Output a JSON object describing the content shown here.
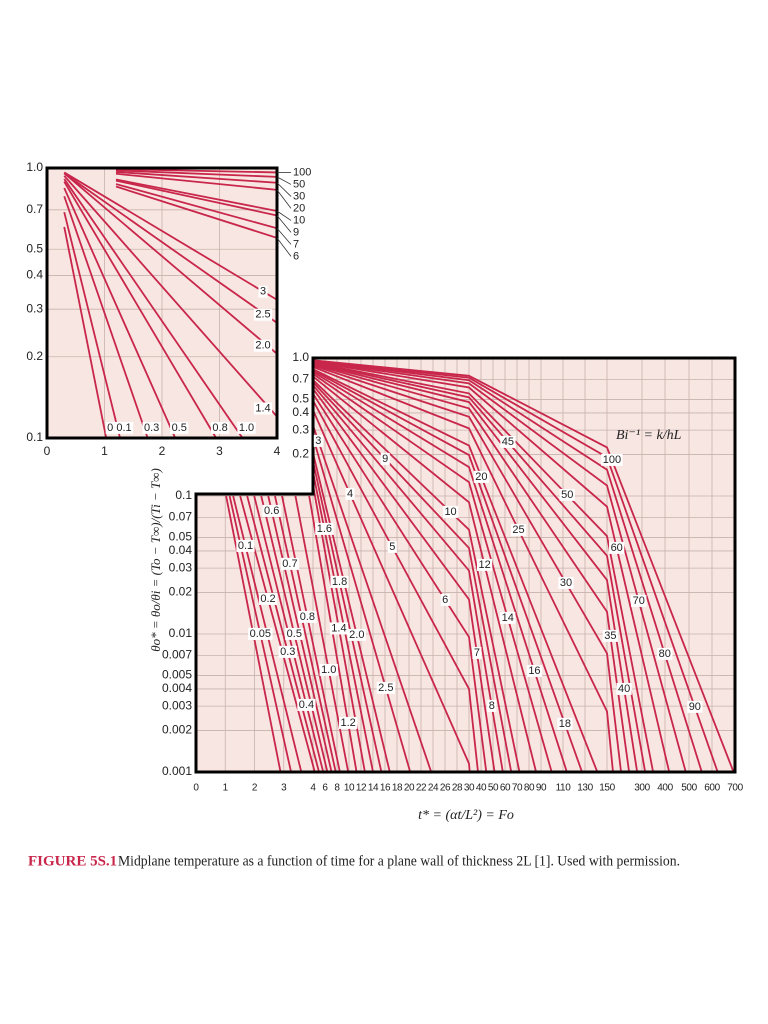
{
  "chart_data": [
    {
      "type": "line",
      "log_y": true,
      "grid": true,
      "color": "#c8264a",
      "background": "#f8e6e2",
      "xlim": [
        0,
        4
      ],
      "xticks": [
        0,
        1,
        2,
        3,
        4
      ],
      "ylim": [
        0.1,
        1
      ],
      "yticks": [
        {
          "value": 1,
          "label": "1.0"
        },
        0.7,
        0.5,
        0.4,
        0.3,
        0.2,
        0.1
      ],
      "series": [
        {
          "name": "0",
          "x": [
            0.3,
            1.03
          ],
          "values": [
            0.605,
            0.1
          ]
        },
        {
          "name": "0.1",
          "x": [
            0.3,
            1.27
          ],
          "values": [
            0.686,
            0.1
          ]
        },
        {
          "name": "0.3",
          "x": [
            0.3,
            1.75
          ],
          "values": [
            0.786,
            0.1
          ]
        },
        {
          "name": "0.5",
          "x": [
            0.3,
            2.23
          ],
          "values": [
            0.843,
            0.1
          ]
        },
        {
          "name": "0.8",
          "x": [
            0.3,
            2.94
          ],
          "values": [
            0.89,
            0.1
          ]
        },
        {
          "name": "1.0",
          "x": [
            0.3,
            3.4
          ],
          "values": [
            0.91,
            0.1
          ]
        },
        {
          "name": "1.4",
          "x": [
            0.3,
            4
          ],
          "values": [
            0.935,
            0.12
          ]
        },
        {
          "name": "2.0",
          "x": [
            0.3,
            4
          ],
          "values": [
            0.956,
            0.205
          ]
        },
        {
          "name": "2.5",
          "x": [
            0.3,
            4
          ],
          "values": [
            0.955,
            0.267
          ]
        },
        {
          "name": "3",
          "x": [
            0.3,
            4
          ],
          "values": [
            0.963,
            0.325
          ]
        },
        {
          "name": "6",
          "x": [
            1.2,
            4
          ],
          "values": [
            0.854,
            0.551
          ]
        },
        {
          "name": "7",
          "x": [
            1.2,
            4
          ],
          "values": [
            0.872,
            0.598
          ]
        },
        {
          "name": "9",
          "x": [
            1.2,
            4
          ],
          "values": [
            0.898,
            0.667
          ]
        },
        {
          "name": "10",
          "x": [
            1.2,
            4
          ],
          "values": [
            0.907,
            0.693
          ]
        },
        {
          "name": "20",
          "x": [
            1.2,
            4
          ],
          "values": [
            0.952,
            0.83
          ]
        },
        {
          "name": "30",
          "x": [
            1.2,
            4
          ],
          "values": [
            0.967,
            0.882
          ]
        },
        {
          "name": "50",
          "x": [
            1.2,
            4
          ],
          "values": [
            0.98,
            0.927
          ]
        },
        {
          "name": "100",
          "x": [
            1.2,
            4
          ],
          "values": [
            0.99,
            0.963
          ]
        }
      ]
    },
    {
      "type": "line",
      "log_y": true,
      "grid": true,
      "color": "#c8264a",
      "background": "#f8e6e2",
      "x_label": "t* = (αt/L²) = Fo",
      "y_label": "θo* = θo/θi = (To − T∞)/(Ti − T∞)",
      "annotation": "Bi⁻¹ = k/hL",
      "xlim": [
        0,
        700
      ],
      "xticks": [
        0,
        1,
        2,
        3,
        4,
        6,
        8,
        10,
        12,
        14,
        16,
        18,
        20,
        22,
        24,
        26,
        28,
        30,
        40,
        50,
        60,
        70,
        80,
        90,
        110,
        130,
        150,
        300,
        400,
        500,
        600,
        700
      ],
      "ylim": [
        0.001,
        1
      ],
      "yticks": [
        {
          "value": 1,
          "label": "1.0"
        },
        0.7,
        0.5,
        0.4,
        0.3,
        0.2,
        0.1,
        0.07,
        0.05,
        0.04,
        0.03,
        0.02,
        0.01,
        0.007,
        0.005,
        0.004,
        0.003,
        0.002,
        0.001
      ],
      "series": [
        {
          "name": "0",
          "x": [
            1.03,
            2.89
          ],
          "values": [
            0.1,
            0.001
          ]
        },
        {
          "name": "0.05",
          "x": [
            1.15,
            3.25
          ],
          "values": [
            0.1,
            0.001
          ]
        },
        {
          "name": "0.1",
          "x": [
            1.27,
            3.6
          ],
          "values": [
            0.1,
            0.001
          ]
        },
        {
          "name": "0.2",
          "x": [
            1.51,
            4.3
          ],
          "values": [
            0.1,
            0.001
          ]
        },
        {
          "name": "0.3",
          "x": [
            1.75,
            5.0
          ],
          "values": [
            0.1,
            0.001
          ]
        },
        {
          "name": "0.4",
          "x": [
            1.99,
            5.7
          ],
          "values": [
            0.1,
            0.001
          ]
        },
        {
          "name": "0.5",
          "x": [
            2.23,
            6.4
          ],
          "values": [
            0.1,
            0.001
          ]
        },
        {
          "name": "0.6",
          "x": [
            2.47,
            7.09
          ],
          "values": [
            0.1,
            0.001
          ]
        },
        {
          "name": "0.7",
          "x": [
            2.7,
            7.79
          ],
          "values": [
            0.1,
            0.001
          ]
        },
        {
          "name": "0.8",
          "x": [
            2.94,
            8.48
          ],
          "values": [
            0.1,
            0.001
          ]
        },
        {
          "name": "1.0",
          "x": [
            3.4,
            9.87
          ],
          "values": [
            0.1,
            0.001
          ]
        },
        {
          "name": "1.2",
          "x": [
            3.87,
            11.26
          ],
          "values": [
            0.1,
            0.001
          ]
        },
        {
          "name": "1.4",
          "x": [
            4,
            12.65
          ],
          "values": [
            0.12,
            0.001
          ]
        },
        {
          "name": "1.6",
          "x": [
            4,
            14.0
          ],
          "values": [
            0.149,
            0.001
          ]
        },
        {
          "name": "1.8",
          "x": [
            4,
            15.4
          ],
          "values": [
            0.178,
            0.001
          ]
        },
        {
          "name": "2.0",
          "x": [
            4,
            16.8
          ],
          "values": [
            0.205,
            0.001
          ]
        },
        {
          "name": "2.5",
          "x": [
            4,
            20.2
          ],
          "values": [
            0.267,
            0.001
          ]
        },
        {
          "name": "3",
          "x": [
            4,
            23.7
          ],
          "values": [
            0.325,
            0.001
          ]
        },
        {
          "name": "4",
          "x": [
            4,
            30,
            30.6
          ],
          "values": [
            0.42,
            0.00115,
            0.001
          ]
        },
        {
          "name": "5",
          "x": [
            4,
            30,
            37.5
          ],
          "values": [
            0.493,
            0.004,
            0.001
          ]
        },
        {
          "name": "6",
          "x": [
            4,
            30,
            44.4
          ],
          "values": [
            0.551,
            0.0095,
            0.001
          ]
        },
        {
          "name": "7",
          "x": [
            4,
            30,
            51.3
          ],
          "values": [
            0.598,
            0.0178,
            0.001
          ]
        },
        {
          "name": "8",
          "x": [
            4,
            30,
            58.2
          ],
          "values": [
            0.635,
            0.0288,
            0.001
          ]
        },
        {
          "name": "9",
          "x": [
            4,
            30,
            65.2
          ],
          "values": [
            0.667,
            0.042,
            0.001
          ]
        },
        {
          "name": "10",
          "x": [
            4,
            30,
            72.1
          ],
          "values": [
            0.693,
            0.057,
            0.001
          ]
        },
        {
          "name": "12",
          "x": [
            4,
            30,
            85.9
          ],
          "values": [
            0.735,
            0.09,
            0.001
          ]
        },
        {
          "name": "14",
          "x": [
            4,
            30,
            99.7
          ],
          "values": [
            0.767,
            0.126,
            0.001
          ]
        },
        {
          "name": "16",
          "x": [
            4,
            30,
            113.5
          ],
          "values": [
            0.793,
            0.162,
            0.001
          ]
        },
        {
          "name": "18",
          "x": [
            4,
            30,
            127.3
          ],
          "values": [
            0.814,
            0.198,
            0.001
          ]
        },
        {
          "name": "20",
          "x": [
            4,
            30,
            141.2
          ],
          "values": [
            0.83,
            0.232,
            0.001
          ]
        },
        {
          "name": "25",
          "x": [
            4,
            30,
            150,
            175.7
          ],
          "values": [
            0.861,
            0.309,
            0.00275,
            0.001
          ]
        },
        {
          "name": "30",
          "x": [
            4,
            30,
            150,
            210.2
          ],
          "values": [
            0.882,
            0.375,
            0.00724,
            0.001
          ]
        },
        {
          "name": "35",
          "x": [
            4,
            30,
            150,
            244.8
          ],
          "values": [
            0.898,
            0.431,
            0.0145,
            0.001
          ]
        },
        {
          "name": "40",
          "x": [
            4,
            30,
            150,
            279.3
          ],
          "values": [
            0.91,
            0.479,
            0.0246,
            0.001
          ]
        },
        {
          "name": "45",
          "x": [
            4,
            30,
            150,
            313.8
          ],
          "values": [
            0.92,
            0.519,
            0.0369,
            0.001
          ]
        },
        {
          "name": "50",
          "x": [
            4,
            30,
            150,
            348.4
          ],
          "values": [
            0.927,
            0.554,
            0.0512,
            0.001
          ]
        },
        {
          "name": "60",
          "x": [
            4,
            30,
            150,
            417.5
          ],
          "values": [
            0.939,
            0.611,
            0.0837,
            0.001
          ]
        },
        {
          "name": "70",
          "x": [
            4,
            30,
            150,
            486.6
          ],
          "values": [
            0.947,
            0.655,
            0.119,
            0.001
          ]
        },
        {
          "name": "80",
          "x": [
            4,
            30,
            150,
            555.6
          ],
          "values": [
            0.954,
            0.69,
            0.155,
            0.001
          ]
        },
        {
          "name": "90",
          "x": [
            4,
            30,
            150,
            624.7
          ],
          "values": [
            0.959,
            0.719,
            0.191,
            0.001
          ]
        },
        {
          "name": "100",
          "x": [
            4,
            30,
            150,
            693.8
          ],
          "values": [
            0.963,
            0.743,
            0.225,
            0.001
          ]
        }
      ]
    }
  ],
  "caption": {
    "label": "FIGURE 5S.1",
    "text": "Midplane temperature as a function of time for a plane wall of thickness 2L [1]. Used with permission."
  }
}
